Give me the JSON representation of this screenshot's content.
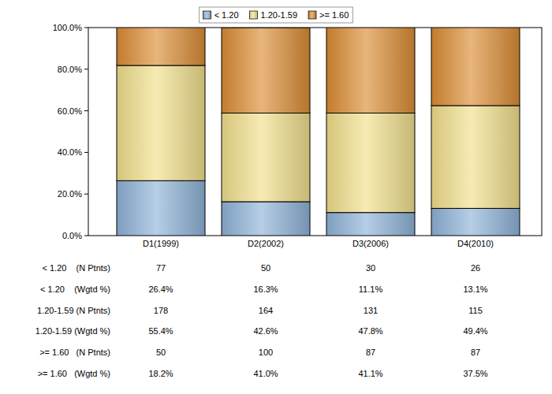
{
  "chart_data": {
    "type": "bar",
    "stacked": true,
    "legend": "top",
    "categories": [
      "D1(1999)",
      "D2(2002)",
      "D3(2006)",
      "D4(2010)"
    ],
    "ylim": [
      0,
      100
    ],
    "yticks": [
      {
        "value": 0,
        "label": "0.0%"
      },
      {
        "value": 20,
        "label": "20.0%"
      },
      {
        "value": 40,
        "label": "40.0%"
      },
      {
        "value": 60,
        "label": "60.0%"
      },
      {
        "value": 80,
        "label": "80.0%"
      },
      {
        "value": 100,
        "label": "100.0%"
      }
    ],
    "series": [
      {
        "name": "< 1.20",
        "color": "#8fb3d9",
        "values": [
          26.4,
          16.3,
          11.1,
          13.1
        ],
        "value_labels": [
          "26.4%",
          "16.3%",
          "11.1%",
          "13.1%"
        ],
        "n_patients": [
          77,
          50,
          30,
          26
        ],
        "n_label": "< 1.20    (N Ptnts)",
        "pct_label": "< 1.20    (Wgtd %)"
      },
      {
        "name": "1.20-1.59",
        "color": "#f2e08c",
        "values": [
          55.4,
          42.6,
          47.8,
          49.4
        ],
        "value_labels": [
          "55.4%",
          "42.6%",
          "47.8%",
          "49.4%"
        ],
        "n_patients": [
          178,
          164,
          131,
          115
        ],
        "n_label": "1.20-1.59 (N Ptnts)",
        "pct_label": "1.20-1.59 (Wgtd %)"
      },
      {
        "name": ">= 1.60",
        "color": "#dc8d34",
        "values": [
          18.2,
          41.0,
          41.1,
          37.5
        ],
        "value_labels": [
          "18.2%",
          "41.0%",
          "41.1%",
          "37.5%"
        ],
        "n_patients": [
          50,
          100,
          87,
          87
        ],
        "n_label": ">= 1.60   (N Ptnts)",
        "pct_label": ">= 1.60   (Wgtd %)"
      }
    ]
  }
}
